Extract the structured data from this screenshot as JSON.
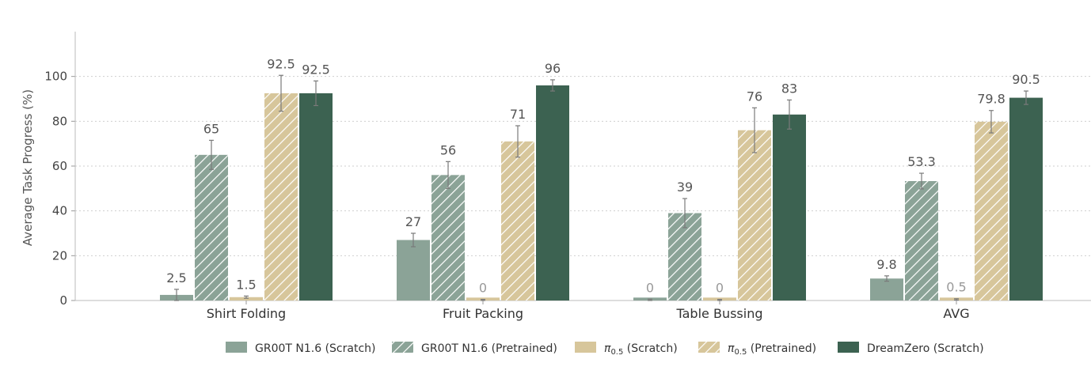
{
  "chart_data": {
    "type": "bar",
    "title": "",
    "xlabel": "",
    "ylabel": "Average Task Progress (%)",
    "ylim": [
      0,
      120
    ],
    "yticks": [
      0,
      20,
      40,
      60,
      80,
      100
    ],
    "categories": [
      "Shirt Folding",
      "Fruit Packing",
      "Table Bussing",
      "AVG"
    ],
    "grid": "horizontal-dotted",
    "legend_position": "bottom",
    "series": [
      {
        "name": "GR00T N1.6 (Scratch)",
        "legend_main": "GR00T N1.6 (Scratch)",
        "legend_sub": "",
        "legend_tail": "",
        "color": "#8ba397",
        "hatch": false,
        "values": [
          2.5,
          27,
          0,
          9.8
        ],
        "value_labels": [
          "2.5",
          "27",
          "0",
          "9.8"
        ],
        "errors": [
          2.5,
          3,
          0.6,
          1.2
        ]
      },
      {
        "name": "GR00T N1.6 (Pretrained)",
        "legend_main": "GR00T N1.6 (Pretrained)",
        "legend_sub": "",
        "legend_tail": "",
        "color": "#8ba397",
        "hatch": true,
        "values": [
          65,
          56,
          39,
          53.3
        ],
        "value_labels": [
          "65",
          "56",
          "39",
          "53.3"
        ],
        "errors": [
          6.5,
          6,
          6.5,
          3.5
        ]
      },
      {
        "name": "π0.5 (Scratch)",
        "legend_main": "π",
        "legend_sub": "0.5",
        "legend_tail": " (Scratch)",
        "color": "#d7c69b",
        "hatch": false,
        "values": [
          1.5,
          0,
          0,
          0.5
        ],
        "value_labels": [
          "1.5",
          "0",
          "0",
          "0.5"
        ],
        "errors": [
          0.5,
          0.5,
          0.5,
          0.3
        ]
      },
      {
        "name": "π0.5 (Pretrained)",
        "legend_main": "π",
        "legend_sub": "0.5",
        "legend_tail": " (Pretrained)",
        "color": "#d7c69b",
        "hatch": true,
        "values": [
          92.5,
          71,
          76,
          79.8
        ],
        "value_labels": [
          "92.5",
          "71",
          "76",
          "79.8"
        ],
        "errors": [
          8,
          7,
          10,
          5
        ]
      },
      {
        "name": "DreamZero (Scratch)",
        "legend_main": "DreamZero (Scratch)",
        "legend_sub": "",
        "legend_tail": "",
        "color": "#3c6251",
        "hatch": false,
        "values": [
          92.5,
          96,
          83,
          90.5
        ],
        "value_labels": [
          "92.5",
          "96",
          "83",
          "90.5"
        ],
        "errors": [
          5.5,
          2.5,
          6.5,
          3
        ]
      }
    ]
  }
}
